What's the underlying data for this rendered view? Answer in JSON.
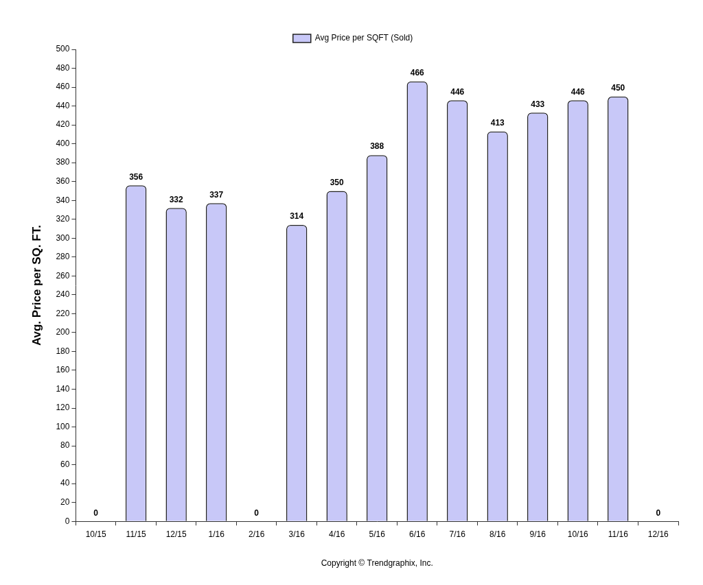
{
  "chart_data": {
    "type": "bar",
    "categories": [
      "10/15",
      "11/15",
      "12/15",
      "1/16",
      "2/16",
      "3/16",
      "4/16",
      "5/16",
      "6/16",
      "7/16",
      "8/16",
      "9/16",
      "10/16",
      "11/16",
      "12/16"
    ],
    "series": [
      {
        "name": "Avg Price per SQFT (Sold)",
        "color": "#c8c8f8",
        "values": [
          0,
          356,
          332,
          337,
          0,
          314,
          350,
          388,
          466,
          446,
          413,
          433,
          446,
          450,
          0
        ]
      }
    ],
    "y_label": "Avg. Price per SQ. FT.",
    "annotations": [
      "Copyright © Trendgraphix, Inc."
    ],
    "ylim": [
      0,
      500
    ],
    "yticks": [
      0,
      20,
      40,
      60,
      80,
      100,
      120,
      140,
      160,
      180,
      200,
      220,
      240,
      260,
      280,
      300,
      320,
      340,
      360,
      380,
      400,
      420,
      440,
      460,
      480,
      500
    ],
    "grid": false,
    "legend": "top",
    "data_labels": true
  }
}
